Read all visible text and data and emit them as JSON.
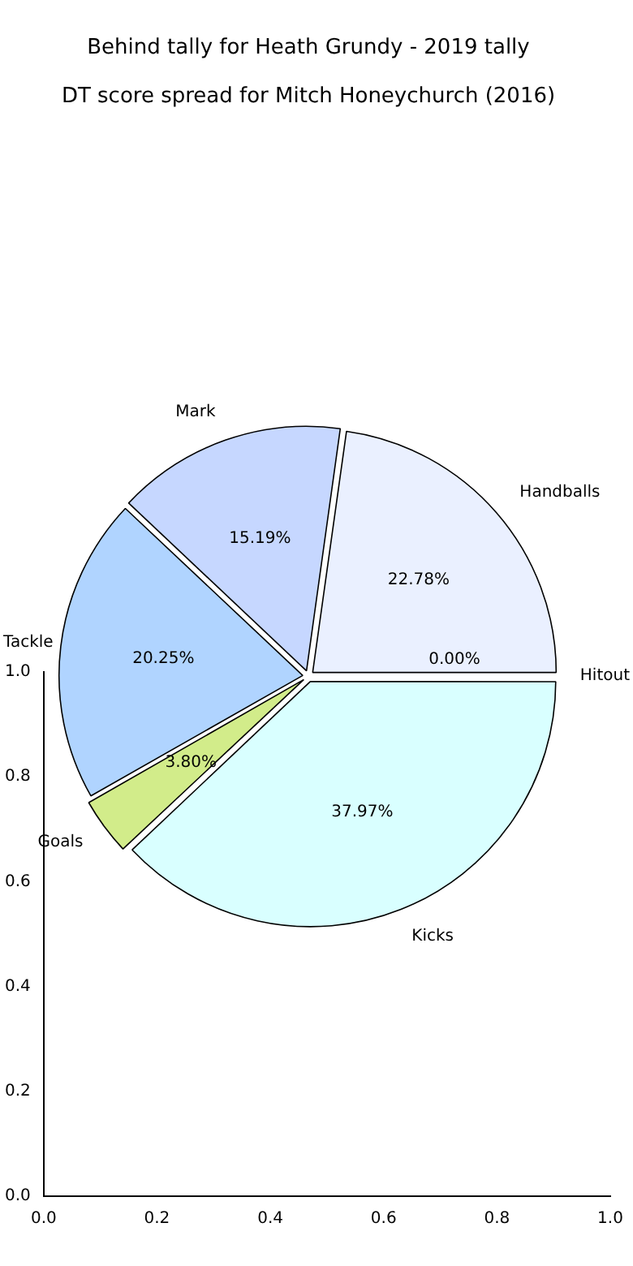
{
  "chart_data": [
    {
      "type": "pie",
      "title": "Behind tally for Heath Grundy - 2019 tally",
      "subtitle": "DT score spread for Mitch Honeychurch (2016)",
      "categories": [
        "Hitout",
        "Kicks",
        "Goals",
        "Tackle",
        "Mark",
        "Handballs"
      ],
      "values": [
        0.0,
        37.97,
        3.8,
        20.25,
        15.19,
        22.78
      ],
      "value_labels": [
        "0.00%",
        "37.97%",
        "3.80%",
        "20.25%",
        "15.19%",
        "22.78%"
      ],
      "colors": [
        "#e0e8f8",
        "#d9ffff",
        "#d2ec8a",
        "#b0d4ff",
        "#c6d7ff",
        "#eaf0ff"
      ],
      "legend": false
    },
    {
      "type": "scatter",
      "xlim": [
        0,
        1
      ],
      "ylim": [
        0,
        1
      ],
      "xticks": [
        {
          "value": 0,
          "label": "0.0"
        },
        0.2,
        0.4,
        0.6,
        0.8,
        {
          "value": 1,
          "label": "1.0"
        }
      ],
      "yticks": [
        {
          "value": 0,
          "label": "0.0"
        },
        0.2,
        0.4,
        0.6,
        0.8,
        {
          "value": 1,
          "label": "1.0"
        }
      ],
      "grid": false
    }
  ]
}
